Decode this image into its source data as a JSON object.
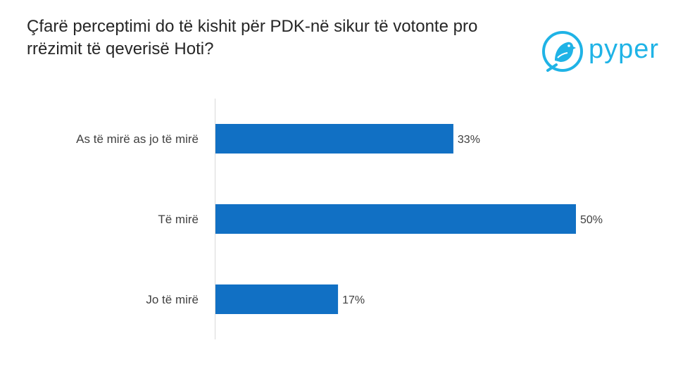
{
  "title": "Çfarë perceptimi do të kishit për PDK-në sikur të votonte pro rrëzimit të qeverisë Hoti?",
  "logo": {
    "text": "pyper",
    "color": "#1fb3e6"
  },
  "chart_data": {
    "type": "bar",
    "orientation": "horizontal",
    "title": "Çfarë perceptimi do të kishit për PDK-në sikur të votonte pro rrëzimit të qeverisë Hoti?",
    "categories": [
      "As të mirë as jo të mirë",
      "Të mirë",
      "Jo të mirë"
    ],
    "values": [
      33,
      50,
      17
    ],
    "value_labels": [
      "33%",
      "50%",
      "17%"
    ],
    "unit": "%",
    "xlim": [
      0,
      50
    ],
    "bar_color": "#1170c4",
    "grid": false,
    "legend": false
  }
}
